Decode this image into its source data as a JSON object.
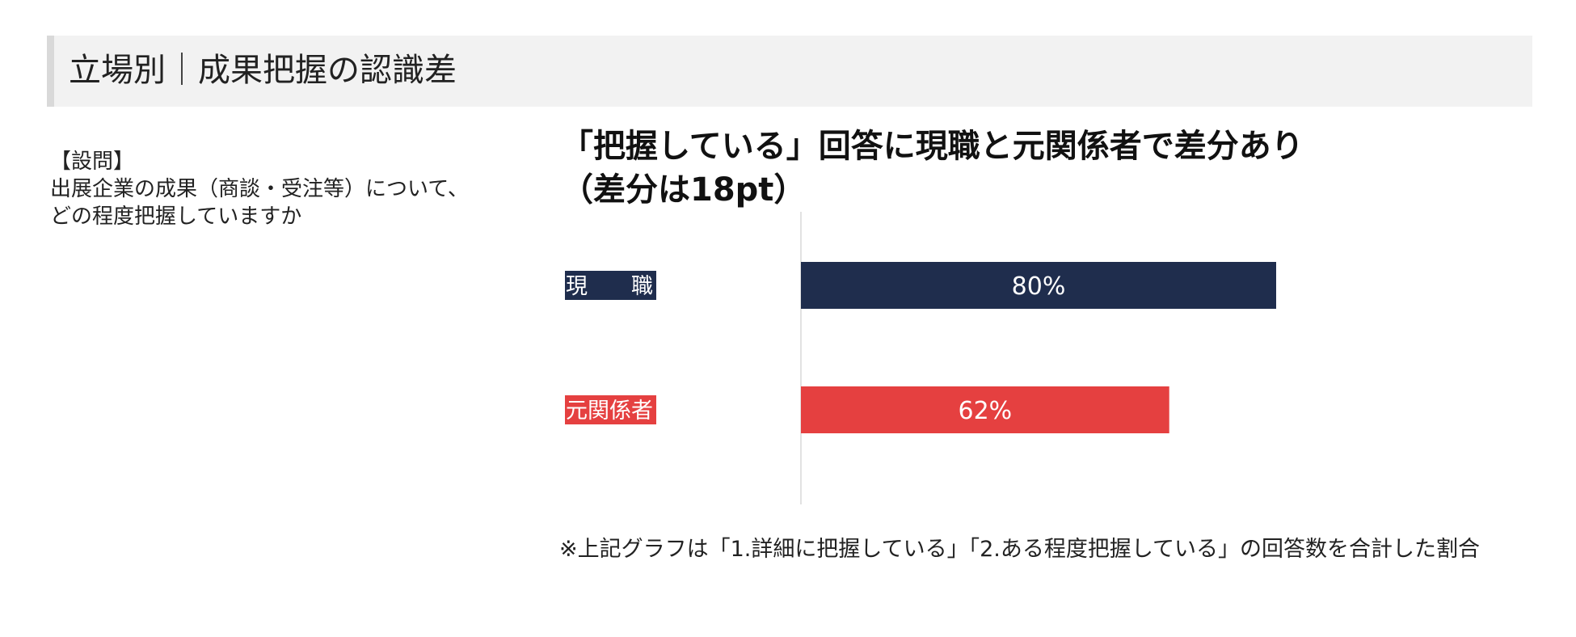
{
  "header": {
    "title": "立場別｜成果把握の認識差"
  },
  "question": {
    "label": "【設問】",
    "line1": "出展企業の成果（商談・受注等）について、",
    "line2": "どの程度把握していますか"
  },
  "headline": {
    "line1": "「把握している」回答に現職と元関係者で差分あり",
    "line2": "（差分は18pt）"
  },
  "chart_data": {
    "type": "bar",
    "orientation": "horizontal",
    "categories": [
      "現　　職",
      "元関係者"
    ],
    "values": [
      80,
      62
    ],
    "value_labels": [
      "80%",
      "62%"
    ],
    "xlim": [
      0,
      100
    ],
    "grid": false,
    "colors": [
      "#1f2d4d",
      "#e54040"
    ]
  },
  "footnote": "※上記グラフは「1.詳細に把握している」「2.ある程度把握している」の回答数を合計した割合"
}
